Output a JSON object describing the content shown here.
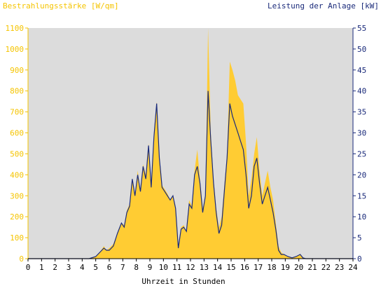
{
  "chart_data": {
    "type": "area",
    "ylabel_left": "Bestrahlungsstärke [W/qm]",
    "ylabel_right": "Leistung der Anlage [kW]",
    "xlabel": "Uhrzeit in Stunden",
    "xlim": [
      0,
      24
    ],
    "ylim_left": [
      0,
      1100
    ],
    "ylim_right": [
      0,
      55
    ],
    "x_ticks": [
      "0",
      "1",
      "2",
      "3",
      "4",
      "5",
      "6",
      "7",
      "8",
      "9",
      "10",
      "11",
      "12",
      "13",
      "14",
      "15",
      "16",
      "17",
      "18",
      "19",
      "20",
      "21",
      "22",
      "23",
      "24"
    ],
    "y_ticks_left": [
      "0",
      "100",
      "200",
      "300",
      "400",
      "500",
      "600",
      "700",
      "800",
      "900",
      "1000",
      "1100"
    ],
    "y_ticks_right": [
      "0",
      "5",
      "10",
      "15",
      "20",
      "25",
      "30",
      "35",
      "40",
      "45",
      "50",
      "55"
    ],
    "grid": false,
    "colors": {
      "plot_background": "#dcdcdc",
      "irradiance_fill": "#ffcc33",
      "power_line": "#1a2a7a",
      "left_axis": "#f5c400",
      "right_axis": "#1a2a7a"
    },
    "series": [
      {
        "axis": "left",
        "style": "area",
        "x": [
          0,
          4.5,
          5.0,
          5.3,
          5.6,
          5.8,
          6.0,
          6.3,
          6.6,
          6.9,
          7.1,
          7.3,
          7.5,
          7.7,
          7.9,
          8.1,
          8.3,
          8.5,
          8.7,
          8.9,
          9.1,
          9.3,
          9.5,
          9.7,
          9.9,
          10.1,
          10.3,
          10.5,
          10.7,
          10.9,
          11.1,
          11.3,
          11.5,
          11.7,
          11.9,
          12.1,
          12.3,
          12.5,
          12.7,
          12.9,
          13.1,
          13.3,
          13.5,
          13.7,
          13.9,
          14.1,
          14.3,
          14.5,
          14.7,
          14.9,
          15.1,
          15.3,
          15.5,
          15.7,
          15.9,
          16.1,
          16.3,
          16.5,
          16.7,
          16.9,
          17.1,
          17.3,
          17.5,
          17.7,
          17.9,
          18.1,
          18.3,
          18.5,
          18.7,
          18.9,
          19.2,
          19.5,
          19.8,
          20.1,
          20.3,
          20.5,
          21,
          24
        ],
        "y": [
          0,
          0,
          10,
          30,
          60,
          40,
          50,
          70,
          120,
          170,
          160,
          230,
          260,
          380,
          300,
          420,
          320,
          450,
          400,
          550,
          350,
          600,
          750,
          500,
          350,
          330,
          310,
          280,
          300,
          240,
          60,
          150,
          160,
          130,
          280,
          250,
          420,
          520,
          380,
          240,
          300,
          1100,
          600,
          380,
          240,
          150,
          200,
          350,
          500,
          940,
          900,
          850,
          780,
          760,
          740,
          550,
          300,
          380,
          500,
          580,
          420,
          300,
          360,
          420,
          340,
          280,
          170,
          60,
          30,
          20,
          10,
          5,
          10,
          20,
          5,
          0,
          0,
          0
        ]
      },
      {
        "axis": "right",
        "style": "line",
        "x": [
          0,
          4.5,
          5.0,
          5.3,
          5.6,
          5.8,
          6.0,
          6.3,
          6.6,
          6.9,
          7.1,
          7.3,
          7.5,
          7.7,
          7.9,
          8.1,
          8.3,
          8.5,
          8.7,
          8.9,
          9.1,
          9.3,
          9.5,
          9.7,
          9.9,
          10.1,
          10.3,
          10.5,
          10.7,
          10.9,
          11.1,
          11.3,
          11.5,
          11.7,
          11.9,
          12.1,
          12.3,
          12.5,
          12.7,
          12.9,
          13.1,
          13.3,
          13.5,
          13.7,
          13.9,
          14.1,
          14.3,
          14.5,
          14.7,
          14.9,
          15.1,
          15.3,
          15.5,
          15.7,
          15.9,
          16.1,
          16.3,
          16.5,
          16.7,
          16.9,
          17.1,
          17.3,
          17.5,
          17.7,
          17.9,
          18.1,
          18.3,
          18.5,
          18.7,
          18.9,
          19.2,
          19.5,
          19.8,
          20.1,
          20.3,
          20.5,
          21,
          24
        ],
        "y": [
          0,
          0,
          0.5,
          1.5,
          2.5,
          2,
          2,
          3,
          6,
          8.5,
          7.5,
          11,
          12.5,
          19,
          15,
          20,
          16,
          22,
          19,
          27,
          17,
          29,
          37,
          24,
          17,
          16,
          15,
          14,
          15,
          12,
          2.5,
          7,
          7.5,
          6.5,
          13,
          12,
          20,
          22,
          18,
          11,
          15,
          40,
          28,
          18,
          11,
          6,
          8,
          16,
          24,
          37,
          34,
          32,
          30,
          28,
          26,
          20,
          12,
          15,
          22,
          24,
          18,
          13,
          15,
          17,
          14,
          11,
          7,
          2,
          1,
          1,
          0.5,
          0.2,
          0.5,
          1,
          0.2,
          0,
          0,
          0
        ]
      }
    ]
  }
}
